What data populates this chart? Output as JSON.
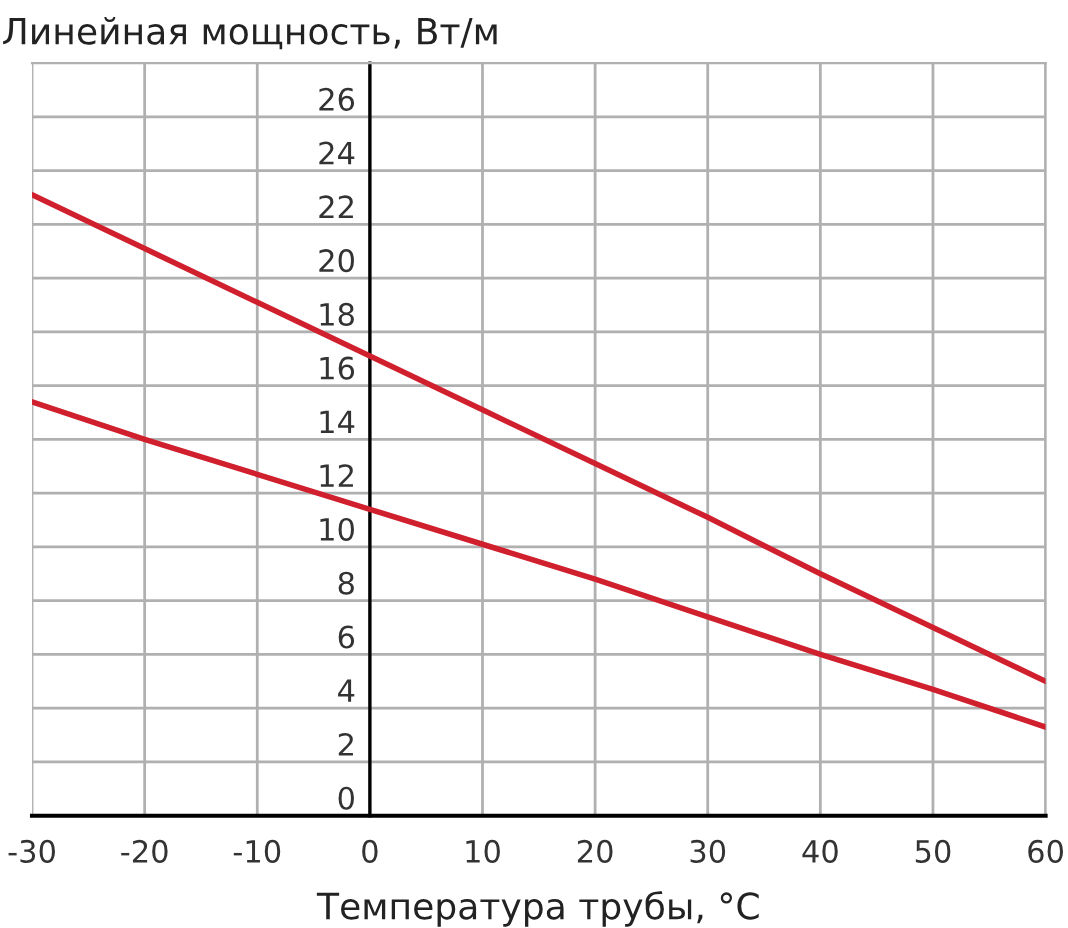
{
  "chart_data": {
    "type": "line",
    "ylabel": "Линейная мощность, Вт/м",
    "xlabel": "Температура трубы, °C",
    "series": [
      {
        "color": "#d0202e",
        "x": [
          -30,
          -20,
          -10,
          0,
          10,
          20,
          30,
          40,
          50,
          60
        ],
        "values": [
          23.1,
          21.1,
          19.1,
          17.1,
          15.1,
          13.1,
          11.1,
          9.0,
          7.0,
          5.0
        ]
      },
      {
        "color": "#d0202e",
        "x": [
          -30,
          -20,
          -10,
          0,
          10,
          20,
          30,
          40,
          50,
          60
        ],
        "values": [
          15.4,
          14.0,
          12.7,
          11.4,
          10.1,
          8.8,
          7.4,
          6.0,
          4.7,
          3.3
        ]
      }
    ],
    "xlim": [
      -30,
      60
    ],
    "xticks": [
      -30,
      -20,
      -10,
      0,
      10,
      20,
      30,
      40,
      50,
      60
    ],
    "ylim": [
      0,
      28
    ],
    "yticks": [
      0,
      2,
      4,
      6,
      8,
      10,
      12,
      14,
      16,
      18,
      20,
      22,
      24,
      26
    ],
    "grid": true,
    "marker": "none",
    "line_style": "solid"
  }
}
